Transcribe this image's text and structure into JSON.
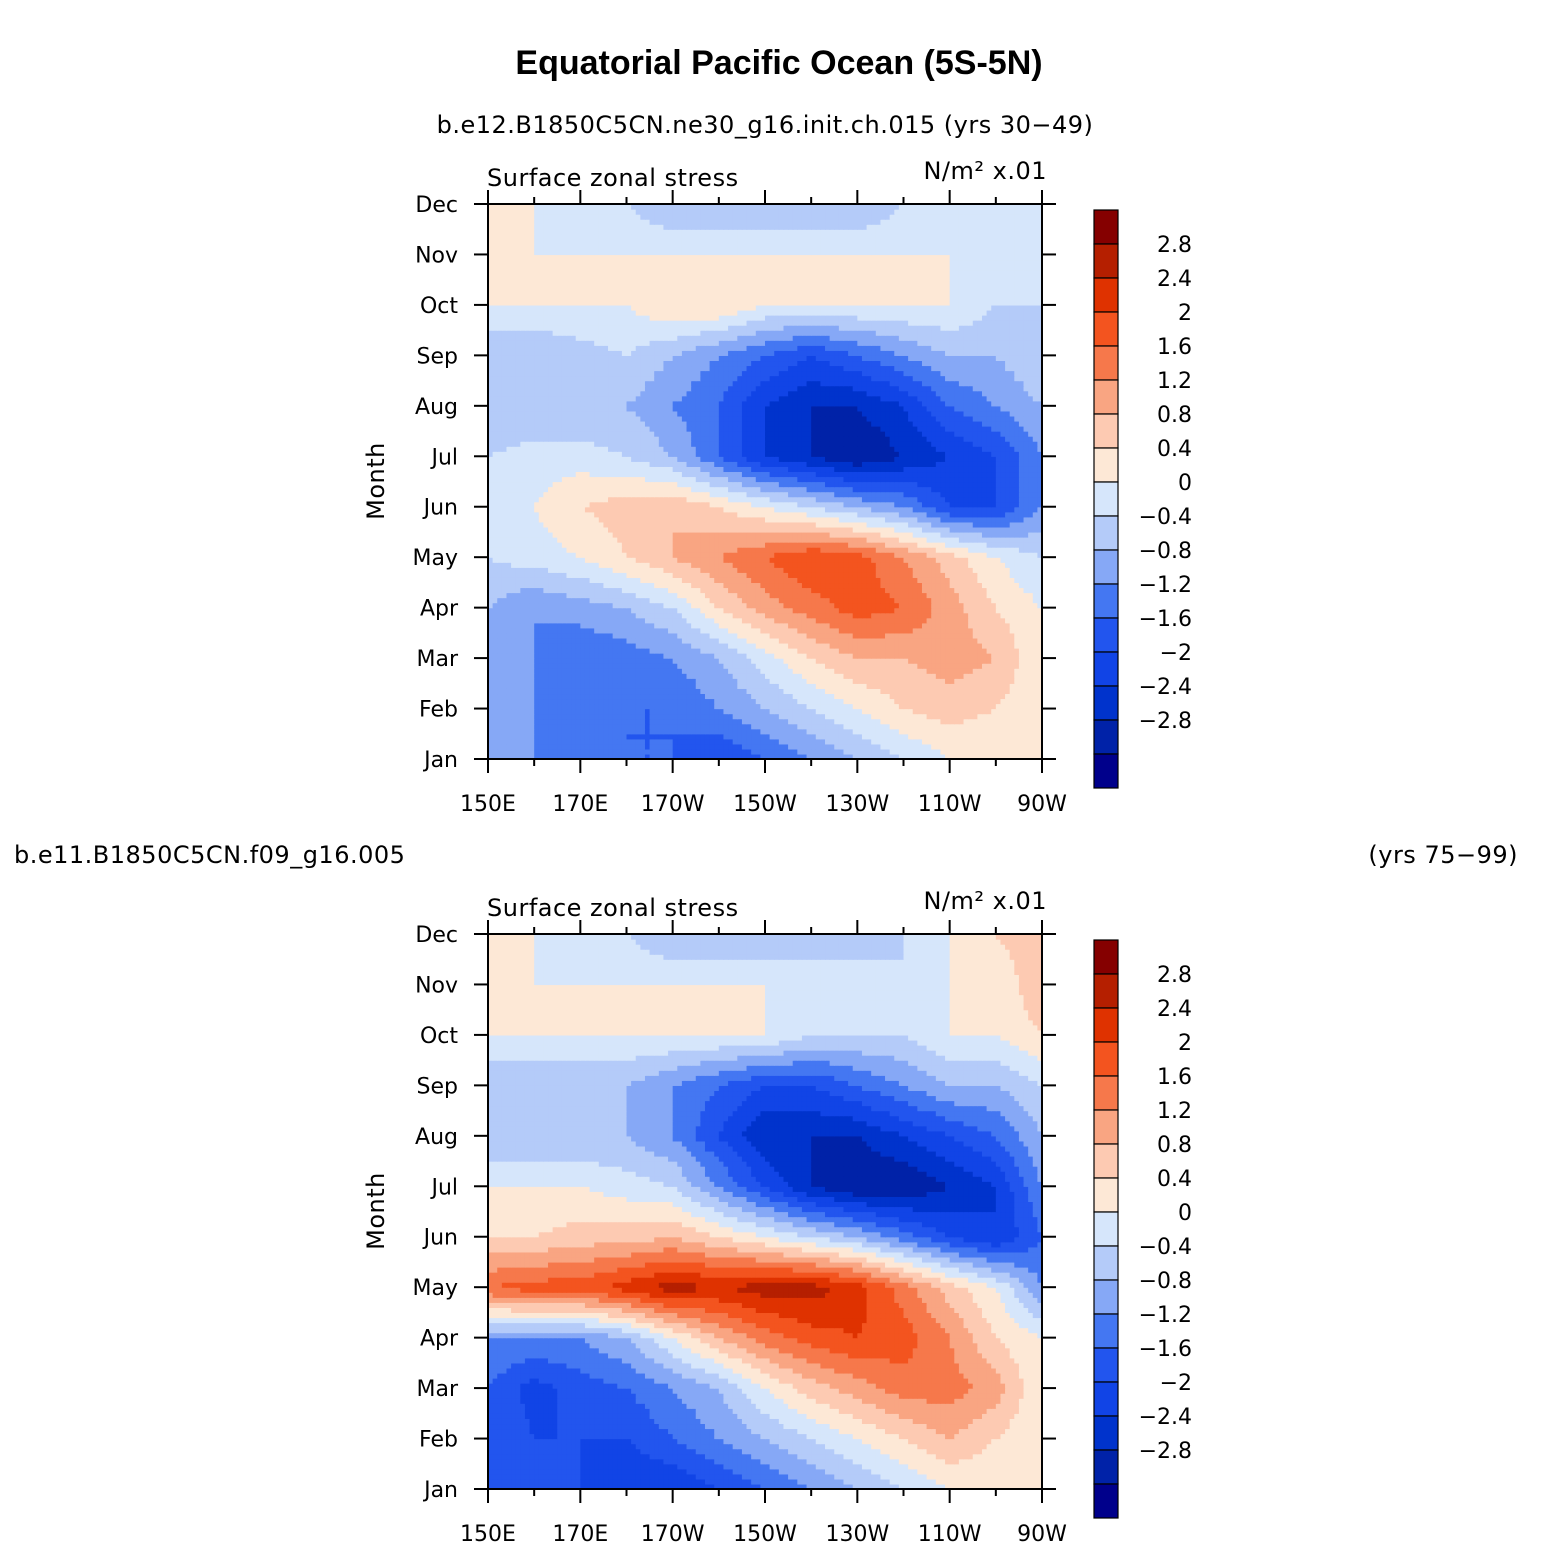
{
  "title": "Equatorial Pacific Ocean (5S-5N)",
  "colors": {
    "levels": [
      -3.2,
      -2.8,
      -2.4,
      -2.0,
      -1.6,
      -1.2,
      -0.8,
      -0.4,
      0,
      0.4,
      0.8,
      1.2,
      1.6,
      2.0,
      2.4,
      2.8,
      3.2
    ],
    "fills": [
      "#00008b",
      "#0022a8",
      "#0033cc",
      "#1144e6",
      "#2255ee",
      "#4477f2",
      "#86a8f6",
      "#b4cbf9",
      "#d6e6fb",
      "#fde8d6",
      "#fdcab2",
      "#f9a582",
      "#f6784b",
      "#f3541f",
      "#df3200",
      "#b51f00",
      "#850000"
    ]
  },
  "panels": [
    {
      "case_label": "b.e12.B1850C5CN.ne30_g16.init.ch.015 (yrs 30−49)",
      "left_string": "Surface zonal stress",
      "right_string": "N/m² x.01",
      "ylabel": "Month",
      "colorbar_labels": [
        "2.8",
        "2.4",
        "2",
        "1.6",
        "1.2",
        "0.8",
        "0.4",
        "0",
        "−0.4",
        "−0.8",
        "−1.2",
        "−1.6",
        "−2",
        "−2.4",
        "−2.8"
      ]
    },
    {
      "case_label": "b.e11.B1850C5CN.f09_g16.005",
      "case_years": "(yrs 75−99)",
      "left_string": "Surface zonal stress",
      "right_string": "N/m² x.01",
      "ylabel": "Month",
      "colorbar_labels": [
        "2.8",
        "2.4",
        "2",
        "1.6",
        "1.2",
        "0.8",
        "0.4",
        "0",
        "−0.4",
        "−0.8",
        "−1.2",
        "−1.6",
        "−2",
        "−2.4",
        "−2.8"
      ]
    }
  ],
  "chart_data": [
    {
      "type": "heatmap",
      "title": "Surface zonal stress",
      "units": "N/m² x.01",
      "xlabel": "",
      "ylabel": "Month",
      "x_tick_labels": [
        "150E",
        "170E",
        "170W",
        "150W",
        "130W",
        "110W",
        "90W"
      ],
      "x_ticks_deg_east": [
        150,
        170,
        190,
        210,
        230,
        250,
        270
      ],
      "xlim_deg_east": [
        150,
        270
      ],
      "y_tick_labels": [
        "Jan",
        "Feb",
        "Mar",
        "Apr",
        "May",
        "Jun",
        "Jul",
        "Aug",
        "Sep",
        "Oct",
        "Nov",
        "Dec"
      ],
      "ylim_month_index": [
        0,
        11
      ],
      "contour_levels": [
        -2.8,
        -2.4,
        -2.0,
        -1.6,
        -1.2,
        -0.8,
        -0.4,
        0,
        0.4,
        0.8,
        1.2,
        1.6,
        2.0,
        2.4,
        2.8
      ],
      "lon": [
        150,
        160,
        170,
        180,
        190,
        200,
        210,
        220,
        230,
        240,
        250,
        260,
        270
      ],
      "z": [
        [
          -0.4,
          -0.8,
          -1.2,
          -1.2,
          -1.2,
          -1.6,
          -1.2,
          -0.8,
          -0.4,
          0.0,
          0.4,
          0.4,
          0.4
        ],
        [
          -0.4,
          -0.8,
          -0.8,
          -1.2,
          -1.2,
          -0.8,
          -0.4,
          0.0,
          0.4,
          0.8,
          1.0,
          0.8,
          0.4
        ],
        [
          -0.8,
          -0.8,
          -1.2,
          -1.0,
          -0.8,
          -0.4,
          0.2,
          0.8,
          1.2,
          1.2,
          1.4,
          1.2,
          0.4
        ],
        [
          -0.4,
          -0.8,
          -0.6,
          -0.4,
          0.0,
          0.8,
          1.4,
          1.8,
          2.2,
          2.0,
          1.4,
          0.8,
          0.4
        ],
        [
          0.0,
          0.2,
          0.4,
          0.8,
          1.2,
          1.6,
          2.0,
          2.4,
          2.2,
          1.6,
          1.0,
          0.4,
          0.0
        ],
        [
          0.2,
          0.4,
          0.8,
          1.0,
          1.2,
          0.8,
          0.4,
          0.0,
          -0.4,
          -0.8,
          -1.6,
          -1.6,
          -0.8
        ],
        [
          0.0,
          0.2,
          0.2,
          0.0,
          -0.4,
          -1.2,
          -2.0,
          -2.4,
          -2.8,
          -2.4,
          -2.0,
          -1.6,
          -0.8
        ],
        [
          -0.4,
          -0.4,
          -0.4,
          -0.4,
          -0.8,
          -1.2,
          -2.0,
          -2.4,
          -2.4,
          -2.0,
          -1.2,
          -0.8,
          -0.4
        ],
        [
          -0.4,
          -0.4,
          -0.2,
          0.0,
          -0.4,
          -0.8,
          -1.2,
          -1.6,
          -1.2,
          -0.8,
          -0.4,
          -0.4,
          0.0
        ],
        [
          0.4,
          0.4,
          0.4,
          0.4,
          0.8,
          0.8,
          0.4,
          0.4,
          0.4,
          0.4,
          0.4,
          0.0,
          0.0
        ],
        [
          0.4,
          0.4,
          0.4,
          0.4,
          0.4,
          0.4,
          0.4,
          0.4,
          0.4,
          0.4,
          0.4,
          0.0,
          0.4
        ],
        [
          0.4,
          0.4,
          0.0,
          0.0,
          -0.4,
          -0.4,
          -0.4,
          -0.4,
          -0.4,
          0.0,
          0.0,
          0.4,
          0.4
        ]
      ]
    },
    {
      "type": "heatmap",
      "title": "Surface zonal stress",
      "units": "N/m² x.01",
      "xlabel": "",
      "ylabel": "Month",
      "x_tick_labels": [
        "150E",
        "170E",
        "170W",
        "150W",
        "130W",
        "110W",
        "90W"
      ],
      "x_ticks_deg_east": [
        150,
        170,
        190,
        210,
        230,
        250,
        270
      ],
      "xlim_deg_east": [
        150,
        270
      ],
      "y_tick_labels": [
        "Jan",
        "Feb",
        "Mar",
        "Apr",
        "May",
        "Jun",
        "Jul",
        "Aug",
        "Sep",
        "Oct",
        "Nov",
        "Dec"
      ],
      "ylim_month_index": [
        0,
        11
      ],
      "contour_levels": [
        -2.8,
        -2.4,
        -2.0,
        -1.6,
        -1.2,
        -0.8,
        -0.4,
        0,
        0.4,
        0.8,
        1.2,
        1.6,
        2.0,
        2.4,
        2.8
      ],
      "lon": [
        150,
        160,
        170,
        180,
        190,
        200,
        210,
        220,
        230,
        240,
        250,
        260,
        270
      ],
      "z": [
        [
          -1.2,
          -1.2,
          -1.6,
          -2.0,
          -2.0,
          -1.6,
          -1.2,
          -0.8,
          -0.4,
          0.0,
          0.4,
          0.4,
          0.4
        ],
        [
          -1.2,
          -1.6,
          -1.6,
          -1.6,
          -1.2,
          -0.8,
          -0.4,
          0.0,
          0.4,
          0.8,
          1.2,
          0.8,
          0.4
        ],
        [
          -1.2,
          -1.8,
          -1.4,
          -1.2,
          -0.8,
          -0.4,
          0.4,
          1.0,
          1.4,
          1.8,
          1.8,
          1.4,
          0.4
        ],
        [
          -0.8,
          -0.8,
          -0.8,
          -0.4,
          0.4,
          1.2,
          1.8,
          2.2,
          2.4,
          2.2,
          1.6,
          0.8,
          0.4
        ],
        [
          2.0,
          2.2,
          2.2,
          2.6,
          3.0,
          2.8,
          3.0,
          3.0,
          2.6,
          1.8,
          1.0,
          0.4,
          -0.8
        ],
        [
          0.8,
          0.8,
          1.0,
          1.0,
          1.2,
          0.8,
          0.4,
          0.0,
          -0.4,
          -1.0,
          -1.6,
          -2.0,
          -1.2
        ],
        [
          0.4,
          0.4,
          0.4,
          0.2,
          0.0,
          -0.8,
          -1.6,
          -2.4,
          -2.8,
          -2.8,
          -2.4,
          -2.0,
          -0.8
        ],
        [
          -0.4,
          -0.4,
          -0.4,
          -0.4,
          -0.8,
          -1.6,
          -2.4,
          -2.4,
          -2.4,
          -2.0,
          -1.6,
          -1.2,
          -0.4
        ],
        [
          -0.4,
          -0.4,
          -0.4,
          -0.4,
          -0.8,
          -1.2,
          -1.6,
          -1.6,
          -1.2,
          -0.8,
          -0.4,
          -0.4,
          0.0
        ],
        [
          0.4,
          0.4,
          0.4,
          0.4,
          0.4,
          0.4,
          0.4,
          0.0,
          0.0,
          0.0,
          0.4,
          0.4,
          0.8
        ],
        [
          0.4,
          0.4,
          0.4,
          0.4,
          0.4,
          0.4,
          0.4,
          0.4,
          0.4,
          0.0,
          0.4,
          0.4,
          1.2
        ],
        [
          0.4,
          0.4,
          0.0,
          0.0,
          -0.4,
          -0.4,
          -0.4,
          -0.4,
          -0.4,
          0.0,
          0.4,
          0.8,
          1.2
        ]
      ]
    }
  ]
}
